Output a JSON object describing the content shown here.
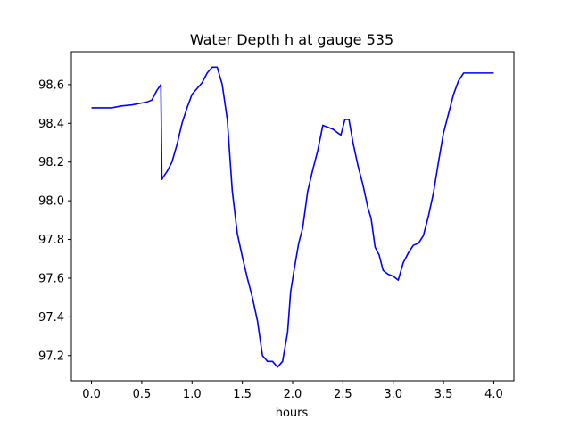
{
  "chart_data": {
    "type": "line",
    "title": "Water Depth h at gauge 535",
    "xlabel": "hours",
    "ylabel": "",
    "xlim": [
      -0.2,
      4.2
    ],
    "ylim": [
      97.07,
      98.77
    ],
    "xticks": [
      0.0,
      0.5,
      1.0,
      1.5,
      2.0,
      2.5,
      3.0,
      3.5,
      4.0
    ],
    "xtick_labels": [
      "0.0",
      "0.5",
      "1.0",
      "1.5",
      "2.0",
      "2.5",
      "3.0",
      "3.5",
      "4.0"
    ],
    "yticks": [
      97.2,
      97.4,
      97.6,
      97.8,
      98.0,
      98.2,
      98.4,
      98.6
    ],
    "ytick_labels": [
      "97.2",
      "97.4",
      "97.6",
      "97.8",
      "98.0",
      "98.2",
      "98.4",
      "98.6"
    ],
    "grid": false,
    "series": [
      {
        "name": "",
        "color": "#0000ff",
        "x": [
          0.0,
          0.1,
          0.2,
          0.3,
          0.4,
          0.5,
          0.55,
          0.6,
          0.65,
          0.69,
          0.7,
          0.71,
          0.75,
          0.8,
          0.85,
          0.9,
          0.95,
          1.0,
          1.05,
          1.1,
          1.15,
          1.2,
          1.25,
          1.3,
          1.35,
          1.4,
          1.45,
          1.5,
          1.55,
          1.6,
          1.65,
          1.7,
          1.75,
          1.8,
          1.85,
          1.9,
          1.95,
          1.98,
          2.02,
          2.06,
          2.1,
          2.15,
          2.2,
          2.25,
          2.3,
          2.35,
          2.4,
          2.45,
          2.48,
          2.52,
          2.56,
          2.6,
          2.65,
          2.7,
          2.75,
          2.78,
          2.82,
          2.86,
          2.9,
          2.95,
          3.0,
          3.05,
          3.1,
          3.15,
          3.2,
          3.25,
          3.3,
          3.35,
          3.4,
          3.45,
          3.5,
          3.55,
          3.6,
          3.65,
          3.7,
          3.75,
          3.8,
          3.85,
          3.9,
          3.95,
          4.0
        ],
        "y": [
          98.48,
          98.48,
          98.48,
          98.49,
          98.495,
          98.505,
          98.51,
          98.52,
          98.57,
          98.6,
          98.11,
          98.12,
          98.15,
          98.2,
          98.29,
          98.4,
          98.48,
          98.55,
          98.58,
          98.61,
          98.66,
          98.69,
          98.69,
          98.6,
          98.42,
          98.05,
          97.83,
          97.71,
          97.6,
          97.5,
          97.38,
          97.2,
          97.17,
          97.17,
          97.14,
          97.17,
          97.32,
          97.53,
          97.66,
          97.78,
          97.86,
          98.05,
          98.16,
          98.26,
          98.39,
          98.38,
          98.37,
          98.35,
          98.34,
          98.42,
          98.42,
          98.3,
          98.18,
          98.08,
          97.96,
          97.91,
          97.76,
          97.72,
          97.64,
          97.62,
          97.61,
          97.59,
          97.68,
          97.73,
          97.77,
          97.78,
          97.82,
          97.92,
          98.04,
          98.2,
          98.35,
          98.45,
          98.55,
          98.62,
          98.66,
          98.66,
          98.66,
          98.66,
          98.66,
          98.66,
          98.66
        ]
      }
    ]
  }
}
